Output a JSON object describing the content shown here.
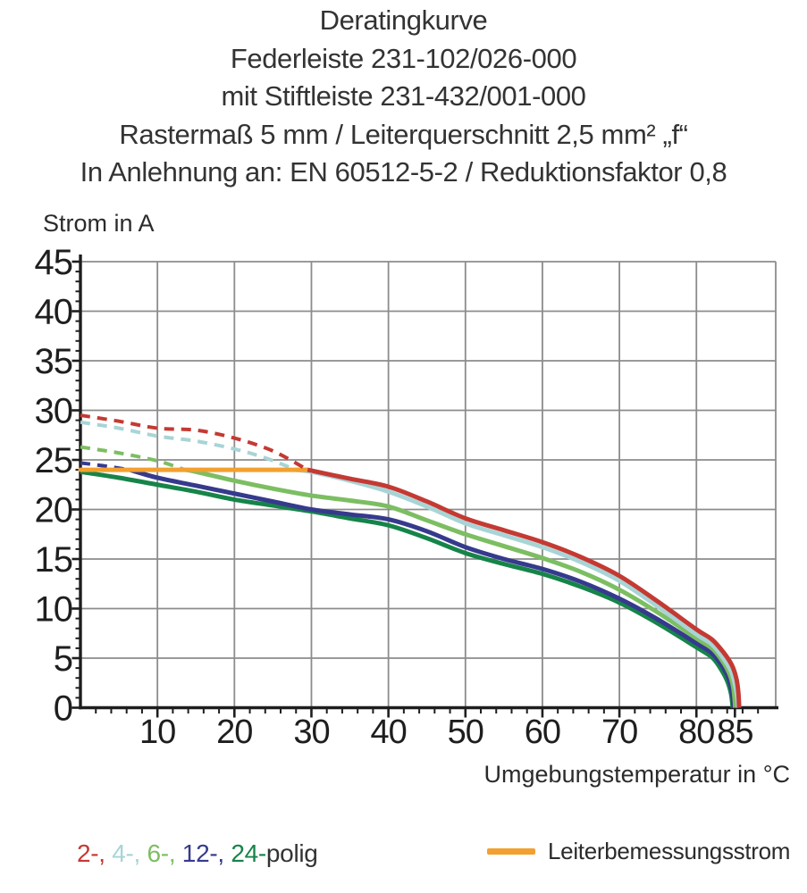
{
  "page": {
    "background": "#ffffff"
  },
  "title": {
    "lines": [
      "Deratingkurve",
      "Federleiste 231-102/026-000",
      "mit Stiftleiste 231-432/001-000",
      "Rastermaß 5 mm / Leiterquerschnitt 2,5 mm² „f“",
      "In Anlehnung an: EN 60512-5-2 / Reduktionsfaktor 0,8"
    ]
  },
  "chart_data": {
    "type": "line",
    "ylabel": "Strom in A",
    "xlabel": "Umgebungstemperatur in °C",
    "xlim": [
      0,
      90.3
    ],
    "ylim": [
      0,
      45
    ],
    "x_major_ticks": [
      10,
      20,
      30,
      40,
      50,
      60,
      70,
      80,
      85
    ],
    "x_gridline_values": [
      10,
      20,
      30,
      40,
      50,
      60,
      70,
      80,
      90.3
    ],
    "x_minor_tick_step": 2,
    "x_minor_tick_max": 88,
    "y_major_tick_step": 5,
    "y_minor_tick_step": 1,
    "grid": true,
    "legend_position": "bottom",
    "colors": {
      "grid": "#8c8c8c",
      "axis": "#1e1e1e",
      "tick_text": "#1e1e1e"
    },
    "series": [
      {
        "name": "24-polig",
        "color": "#168449",
        "points_dashed": [],
        "points_solid": [
          [
            0,
            23.8
          ],
          [
            5,
            23.2
          ],
          [
            10,
            22.5
          ],
          [
            15,
            21.8
          ],
          [
            20,
            21.0
          ],
          [
            25,
            20.4
          ],
          [
            30,
            19.8
          ],
          [
            35,
            19.1
          ],
          [
            40,
            18.4
          ],
          [
            45,
            17.1
          ],
          [
            50,
            15.6
          ],
          [
            55,
            14.5
          ],
          [
            60,
            13.5
          ],
          [
            65,
            12.2
          ],
          [
            70,
            10.6
          ],
          [
            75,
            8.5
          ],
          [
            80,
            6.1
          ],
          [
            82,
            5.1
          ],
          [
            83.1,
            4.0
          ],
          [
            84.0,
            2.7
          ],
          [
            84.5,
            1.4
          ],
          [
            84.72,
            0
          ]
        ]
      },
      {
        "name": "12-polig",
        "color": "#363a8d",
        "points_dashed": [
          [
            0,
            24.7
          ],
          [
            3,
            24.4
          ],
          [
            6.4,
            24.0
          ]
        ],
        "points_solid": [
          [
            6.4,
            24.0
          ],
          [
            10,
            23.2
          ],
          [
            15,
            22.4
          ],
          [
            20,
            21.6
          ],
          [
            25,
            20.8
          ],
          [
            30,
            20.0
          ],
          [
            35,
            19.5
          ],
          [
            40,
            19.0
          ],
          [
            45,
            17.8
          ],
          [
            50,
            16.2
          ],
          [
            55,
            15.0
          ],
          [
            60,
            14.0
          ],
          [
            65,
            12.7
          ],
          [
            70,
            11.0
          ],
          [
            75,
            8.9
          ],
          [
            80,
            6.5
          ],
          [
            82,
            5.5
          ],
          [
            83.2,
            4.4
          ],
          [
            84.1,
            3.1
          ],
          [
            84.6,
            1.7
          ],
          [
            84.85,
            0
          ]
        ]
      },
      {
        "name": "6-polig",
        "color": "#7cbe62",
        "points_dashed": [
          [
            0,
            26.3
          ],
          [
            5,
            25.7
          ],
          [
            10,
            24.9
          ],
          [
            13.6,
            24.0
          ]
        ],
        "points_solid": [
          [
            13.6,
            24.0
          ],
          [
            15,
            23.8
          ],
          [
            20,
            22.9
          ],
          [
            25,
            22.1
          ],
          [
            30,
            21.4
          ],
          [
            35,
            20.9
          ],
          [
            40,
            20.3
          ],
          [
            45,
            18.9
          ],
          [
            50,
            17.5
          ],
          [
            55,
            16.3
          ],
          [
            60,
            15.1
          ],
          [
            65,
            13.7
          ],
          [
            70,
            11.9
          ],
          [
            75,
            9.6
          ],
          [
            80,
            7.0
          ],
          [
            82,
            6.0
          ],
          [
            83.3,
            4.8
          ],
          [
            84.3,
            3.4
          ],
          [
            84.8,
            2.0
          ],
          [
            85.05,
            0
          ]
        ]
      },
      {
        "name": "4-polig",
        "color": "#a8d4d6",
        "points_dashed": [
          [
            0,
            28.8
          ],
          [
            5,
            28.2
          ],
          [
            10,
            27.4
          ],
          [
            15,
            26.9
          ],
          [
            20,
            26.1
          ],
          [
            24,
            25.2
          ],
          [
            28,
            24.0
          ]
        ],
        "points_solid": [
          [
            28,
            24.0
          ],
          [
            30,
            23.8
          ],
          [
            35,
            22.9
          ],
          [
            40,
            21.8
          ],
          [
            45,
            20.3
          ],
          [
            50,
            18.6
          ],
          [
            55,
            17.4
          ],
          [
            60,
            16.2
          ],
          [
            65,
            14.7
          ],
          [
            70,
            12.8
          ],
          [
            75,
            10.2
          ],
          [
            80,
            7.4
          ],
          [
            82,
            6.4
          ],
          [
            83.4,
            5.1
          ],
          [
            84.5,
            3.7
          ],
          [
            85.0,
            2.4
          ],
          [
            85.3,
            1.2
          ],
          [
            85.45,
            0
          ]
        ]
      },
      {
        "name": "2-polig",
        "color": "#c43a33",
        "points_dashed": [
          [
            0,
            29.5
          ],
          [
            5,
            28.9
          ],
          [
            10,
            28.2
          ],
          [
            15,
            28.0
          ],
          [
            20,
            27.2
          ],
          [
            25,
            25.9
          ],
          [
            29.5,
            24.0
          ]
        ],
        "points_solid": [
          [
            29.5,
            24.0
          ],
          [
            35,
            23.1
          ],
          [
            40,
            22.3
          ],
          [
            45,
            20.8
          ],
          [
            50,
            19.1
          ],
          [
            55,
            17.9
          ],
          [
            60,
            16.7
          ],
          [
            65,
            15.2
          ],
          [
            70,
            13.3
          ],
          [
            75,
            10.7
          ],
          [
            80,
            7.9
          ],
          [
            82,
            6.9
          ],
          [
            83.5,
            5.6
          ],
          [
            84.6,
            4.3
          ],
          [
            85.2,
            2.9
          ],
          [
            85.45,
            1.5
          ],
          [
            85.55,
            0
          ]
        ]
      }
    ],
    "reference_line": {
      "name": "Leiterbemessungsstrom",
      "color": "#f2a02f",
      "value": 24,
      "x_start": 0,
      "x_end": 29.5
    }
  },
  "legend": {
    "poles": {
      "segments": [
        {
          "text": "2-, ",
          "color": "#c43a33"
        },
        {
          "text": "4-, ",
          "color": "#a8d4d6"
        },
        {
          "text": "6-, ",
          "color": "#7cbe62"
        },
        {
          "text": "12-, ",
          "color": "#363a8d"
        },
        {
          "text": "24-",
          "color": "#168449"
        },
        {
          "text": "polig",
          "color": "#333333"
        }
      ]
    },
    "reference": {
      "label": "Leiterbemessungsstrom",
      "swatch_color": "#f2a02f"
    }
  }
}
